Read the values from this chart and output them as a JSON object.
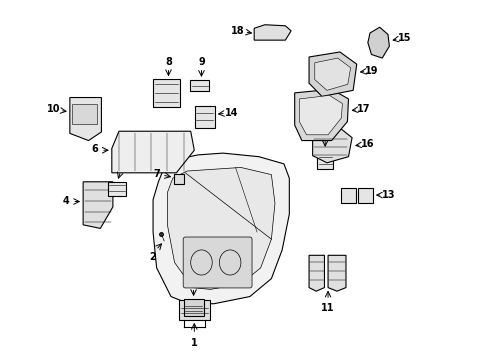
{
  "bg_color": "#ffffff",
  "fig_width": 4.89,
  "fig_height": 3.6,
  "dpi": 100,
  "lw": 0.8,
  "ec": "#000000",
  "fs_label": 7
}
